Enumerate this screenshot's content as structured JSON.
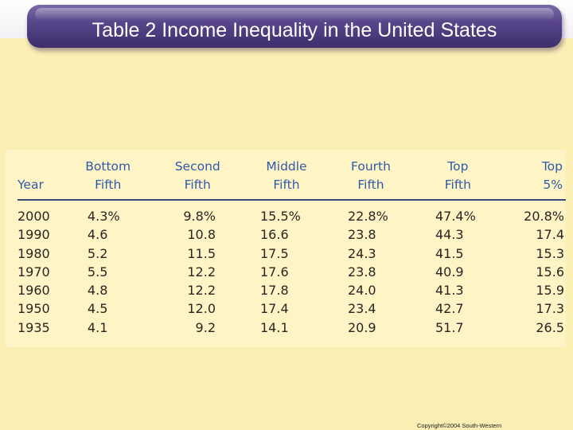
{
  "slide": {
    "title": "Table 2 Income Inequality in the United States",
    "copyright": "Copyright©2004 South-Western"
  },
  "colors": {
    "background": "#fcefb4",
    "table_background": "#fff4c6",
    "title_bar": "#4a3a7c",
    "header_text": "#2f5aa8"
  },
  "table": {
    "headers": [
      {
        "line1": "",
        "line2": "Year"
      },
      {
        "line1": "Bottom",
        "line2": "Fifth"
      },
      {
        "line1": "Second",
        "line2": "Fifth"
      },
      {
        "line1": "Middle",
        "line2": "Fifth"
      },
      {
        "line1": "Fourth",
        "line2": "Fifth"
      },
      {
        "line1": "Top",
        "line2": "Fifth"
      },
      {
        "line1": "Top",
        "line2": "5%"
      }
    ],
    "rows": [
      [
        "2000",
        "4.3%",
        "9.8%",
        "15.5%",
        "22.8%",
        "47.4%",
        "20.8%"
      ],
      [
        "1990",
        "4.6",
        "10.8",
        "16.6",
        "23.8",
        "44.3",
        "17.4"
      ],
      [
        "1980",
        "5.2",
        "11.5",
        "17.5",
        "24.3",
        "41.5",
        "15.3"
      ],
      [
        "1970",
        "5.5",
        "12.2",
        "17.6",
        "23.8",
        "40.9",
        "15.6"
      ],
      [
        "1960",
        "4.8",
        "12.2",
        "17.8",
        "24.0",
        "41.3",
        "15.9"
      ],
      [
        "1950",
        "4.5",
        "12.0",
        "17.4",
        "23.4",
        "42.7",
        "17.3"
      ],
      [
        "1935",
        "4.1",
        "9.2",
        "14.1",
        "20.9",
        "51.7",
        "26.5"
      ]
    ]
  }
}
